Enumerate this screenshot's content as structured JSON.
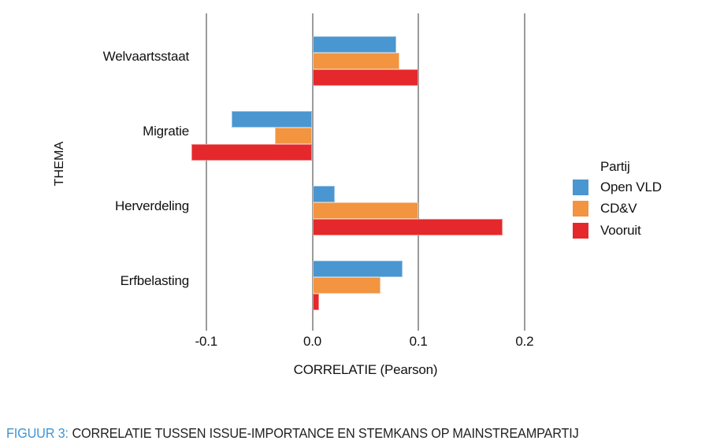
{
  "chart_data": {
    "type": "bar",
    "orientation": "horizontal",
    "title": "",
    "xlabel": "CORRELATIE (Pearson)",
    "ylabel": "THEMA",
    "categories": [
      "Welvaartsstaat",
      "Migratie",
      "Herverdeling",
      "Erfbelasting"
    ],
    "series": [
      {
        "name": "Open VLD",
        "color": "#4a96d0",
        "values": [
          0.079,
          -0.076,
          0.021,
          0.085
        ]
      },
      {
        "name": "CD&V",
        "color": "#f29440",
        "values": [
          0.082,
          -0.035,
          0.1,
          0.064
        ]
      },
      {
        "name": "Vooruit",
        "color": "#e5282b",
        "values": [
          0.1,
          -0.114,
          0.179,
          0.006
        ]
      }
    ],
    "x_ticks": [
      -0.1,
      0.0,
      0.1,
      0.2
    ],
    "x_tick_labels": [
      "-0.1",
      "0.0",
      "0.1",
      "0.2"
    ],
    "xlim": [
      -0.125,
      0.225
    ],
    "grid": "vertical-only",
    "gridline_color": "#9b9b9b",
    "legend": {
      "title": "Partij",
      "position": "right"
    }
  },
  "caption": {
    "prefix": "FIGUUR 3:",
    "prefix_color": "#3f96d2",
    "text": "CORRELATIE TUSSEN ISSUE-IMPORTANCE EN STEMKANS OP MAINSTREAMPARTIJ",
    "text_color": "#231f20"
  }
}
